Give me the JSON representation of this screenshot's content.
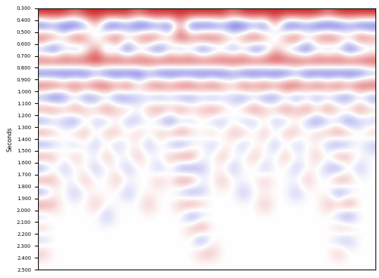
{
  "chart_data": {
    "type": "heatmap",
    "y_label": "Seconds",
    "ylim": [
      2.5,
      0.3
    ],
    "yticks": [
      {
        "value": 0.3,
        "label": "0.300"
      },
      {
        "value": 0.4,
        "label": "0.400"
      },
      {
        "value": 0.5,
        "label": "0.500"
      },
      {
        "value": 0.6,
        "label": "0.600"
      },
      {
        "value": 0.7,
        "label": "0.700"
      },
      {
        "value": 0.8,
        "label": "0.800"
      },
      {
        "value": 0.9,
        "label": "0.900"
      },
      {
        "value": 1.0,
        "label": "1.000"
      },
      {
        "value": 1.1,
        "label": "1.100"
      },
      {
        "value": 1.2,
        "label": "1.200"
      },
      {
        "value": 1.3,
        "label": "1.300"
      },
      {
        "value": 1.4,
        "label": "1.400"
      },
      {
        "value": 1.5,
        "label": "1.500"
      },
      {
        "value": 1.6,
        "label": "1.600"
      },
      {
        "value": 1.7,
        "label": "1.700"
      },
      {
        "value": 1.8,
        "label": "1.800"
      },
      {
        "value": 1.9,
        "label": "1.900"
      },
      {
        "value": 2.0,
        "label": "2.000"
      },
      {
        "value": 2.1,
        "label": "2.100"
      },
      {
        "value": 2.2,
        "label": "2.200"
      },
      {
        "value": 2.3,
        "label": "2.300"
      },
      {
        "value": 2.4,
        "label": "2.400"
      },
      {
        "value": 2.5,
        "label": "2.500"
      }
    ],
    "tick_labels": "y",
    "colors": [
      "#1f1fd0",
      "#ffffff",
      "#d01f1f"
    ],
    "color_range": [
      -3,
      3
    ],
    "cells": [
      [
        3,
        3,
        3,
        2,
        3,
        3,
        3,
        3,
        3,
        2,
        3,
        3,
        3,
        3,
        3,
        3,
        3,
        3,
        2,
        3,
        3,
        3,
        3,
        3,
        3,
        3,
        3,
        2,
        3,
        3,
        3,
        3
      ],
      [
        -3,
        -2,
        -3,
        -3,
        -2,
        1,
        -3,
        -3,
        -2,
        -3,
        -3,
        -2,
        -3,
        1,
        -3,
        -3,
        -3,
        -2,
        -3,
        -3,
        -2,
        -3,
        1,
        -3,
        -3,
        -2,
        -3,
        -3,
        -3,
        -2,
        -3,
        -3
      ],
      [
        3,
        2,
        1,
        3,
        2,
        -1,
        2,
        3,
        1,
        2,
        3,
        2,
        1,
        3,
        2,
        3,
        3,
        2,
        1,
        2,
        3,
        2,
        -1,
        2,
        3,
        1,
        2,
        3,
        2,
        1,
        3,
        2
      ],
      [
        -2,
        -3,
        -1,
        -2,
        -1,
        2,
        -2,
        -1,
        -3,
        -1,
        -2,
        -3,
        -1,
        -2,
        -1,
        -3,
        -2,
        -1,
        -2,
        -1,
        -3,
        -2,
        1,
        -1,
        -2,
        -3,
        -1,
        -2,
        -1,
        -3,
        -2,
        -1
      ],
      [
        3,
        3,
        3,
        3,
        3,
        3,
        3,
        3,
        3,
        3,
        3,
        3,
        3,
        3,
        3,
        3,
        3,
        3,
        3,
        3,
        3,
        3,
        3,
        3,
        3,
        3,
        3,
        3,
        3,
        3,
        3,
        3
      ],
      [
        -3,
        -3,
        -3,
        -3,
        -3,
        -2,
        -3,
        -3,
        -3,
        -3,
        -2,
        -3,
        -3,
        -3,
        -3,
        -3,
        -3,
        -3,
        -2,
        -3,
        -3,
        -3,
        -3,
        -3,
        -2,
        -3,
        -3,
        -3,
        -3,
        -3,
        -3,
        -2
      ],
      [
        3,
        3,
        2,
        3,
        2,
        3,
        3,
        2,
        3,
        1,
        2,
        3,
        2,
        3,
        3,
        2,
        3,
        2,
        1,
        3,
        2,
        3,
        2,
        3,
        3,
        2,
        3,
        2,
        3,
        2,
        3,
        3
      ],
      [
        -2,
        -3,
        -2,
        -1,
        -2,
        -2,
        -1,
        -2,
        -2,
        -1,
        -1,
        -2,
        -1,
        -2,
        -2,
        -1,
        -2,
        -1,
        -1,
        -2,
        -1,
        -2,
        -2,
        -1,
        -2,
        -1,
        -2,
        -1,
        -2,
        -2,
        -1,
        -2
      ],
      [
        2,
        2,
        1,
        2,
        1,
        1,
        2,
        1,
        1,
        0,
        1,
        2,
        1,
        2,
        1,
        1,
        2,
        1,
        0,
        1,
        2,
        1,
        1,
        2,
        1,
        2,
        1,
        2,
        1,
        1,
        2,
        1
      ],
      [
        -2,
        -1,
        -1,
        -2,
        0,
        -1,
        -1,
        0,
        -1,
        -1,
        0,
        -1,
        -2,
        -1,
        -1,
        0,
        -1,
        -1,
        0,
        -1,
        -1,
        0,
        -1,
        -1,
        0,
        -1,
        -2,
        -1,
        -1,
        -2,
        -1,
        -1
      ],
      [
        2,
        1,
        0,
        1,
        1,
        0,
        1,
        1,
        0,
        1,
        0,
        1,
        1,
        2,
        1,
        0,
        1,
        0,
        1,
        1,
        0,
        1,
        0,
        1,
        1,
        0,
        1,
        1,
        2,
        1,
        0,
        1
      ],
      [
        -2,
        -1,
        0,
        -1,
        0,
        -1,
        0,
        -1,
        0,
        0,
        -1,
        0,
        -1,
        -2,
        -1,
        0,
        -1,
        0,
        0,
        -1,
        0,
        0,
        -1,
        0,
        -1,
        0,
        0,
        -1,
        -2,
        -1,
        0,
        -1
      ],
      [
        2,
        1,
        0,
        1,
        0,
        0,
        1,
        0,
        0,
        1,
        0,
        0,
        1,
        2,
        2,
        0,
        0,
        1,
        0,
        0,
        1,
        0,
        0,
        1,
        0,
        0,
        1,
        0,
        2,
        1,
        0,
        0
      ],
      [
        -2,
        0,
        -1,
        0,
        0,
        -1,
        0,
        0,
        -1,
        0,
        0,
        -1,
        0,
        -2,
        -2,
        -1,
        0,
        0,
        -1,
        0,
        0,
        -1,
        0,
        0,
        -1,
        0,
        0,
        -1,
        -2,
        0,
        -1,
        0
      ],
      [
        2,
        1,
        0,
        0,
        1,
        0,
        0,
        1,
        0,
        0,
        0,
        1,
        0,
        2,
        2,
        0,
        0,
        1,
        0,
        0,
        0,
        1,
        0,
        0,
        0,
        1,
        0,
        0,
        2,
        1,
        0,
        0
      ],
      [
        -2,
        0,
        0,
        -1,
        0,
        0,
        0,
        0,
        -1,
        0,
        0,
        0,
        0,
        -1,
        -2,
        -1,
        0,
        0,
        0,
        -1,
        0,
        0,
        0,
        0,
        -1,
        0,
        0,
        0,
        -2,
        -1,
        0,
        0
      ],
      [
        2,
        1,
        0,
        0,
        0,
        1,
        0,
        0,
        0,
        0,
        1,
        0,
        0,
        1,
        2,
        1,
        0,
        0,
        0,
        0,
        0,
        1,
        0,
        0,
        0,
        0,
        0,
        1,
        1,
        2,
        0,
        0
      ],
      [
        -1,
        0,
        0,
        0,
        0,
        0,
        -1,
        0,
        0,
        0,
        0,
        0,
        0,
        0,
        -2,
        -1,
        0,
        0,
        0,
        0,
        0,
        0,
        0,
        0,
        0,
        0,
        0,
        0,
        -1,
        -2,
        0,
        0
      ],
      [
        1,
        0,
        0,
        0,
        0,
        0,
        0,
        0,
        0,
        0,
        0,
        0,
        0,
        0,
        1,
        2,
        0,
        0,
        0,
        0,
        0,
        0,
        0,
        0,
        0,
        0,
        0,
        0,
        1,
        1,
        0,
        0
      ],
      [
        -1,
        0,
        0,
        0,
        0,
        0,
        0,
        0,
        0,
        0,
        0,
        0,
        0,
        0,
        0,
        -2,
        0,
        0,
        0,
        0,
        0,
        0,
        0,
        0,
        0,
        0,
        0,
        0,
        -1,
        -1,
        0,
        0
      ],
      [
        1,
        0,
        0,
        0,
        0,
        0,
        0,
        0,
        0,
        0,
        0,
        0,
        0,
        0,
        0,
        1,
        1,
        0,
        0,
        0,
        0,
        0,
        0,
        0,
        0,
        0,
        0,
        0,
        1,
        0,
        0,
        0
      ],
      [
        0,
        0,
        0,
        0,
        0,
        0,
        0,
        0,
        0,
        0,
        0,
        0,
        0,
        0,
        0,
        0,
        0,
        0,
        0,
        0,
        0,
        0,
        0,
        0,
        0,
        0,
        0,
        0,
        0,
        0,
        0,
        0
      ]
    ]
  }
}
